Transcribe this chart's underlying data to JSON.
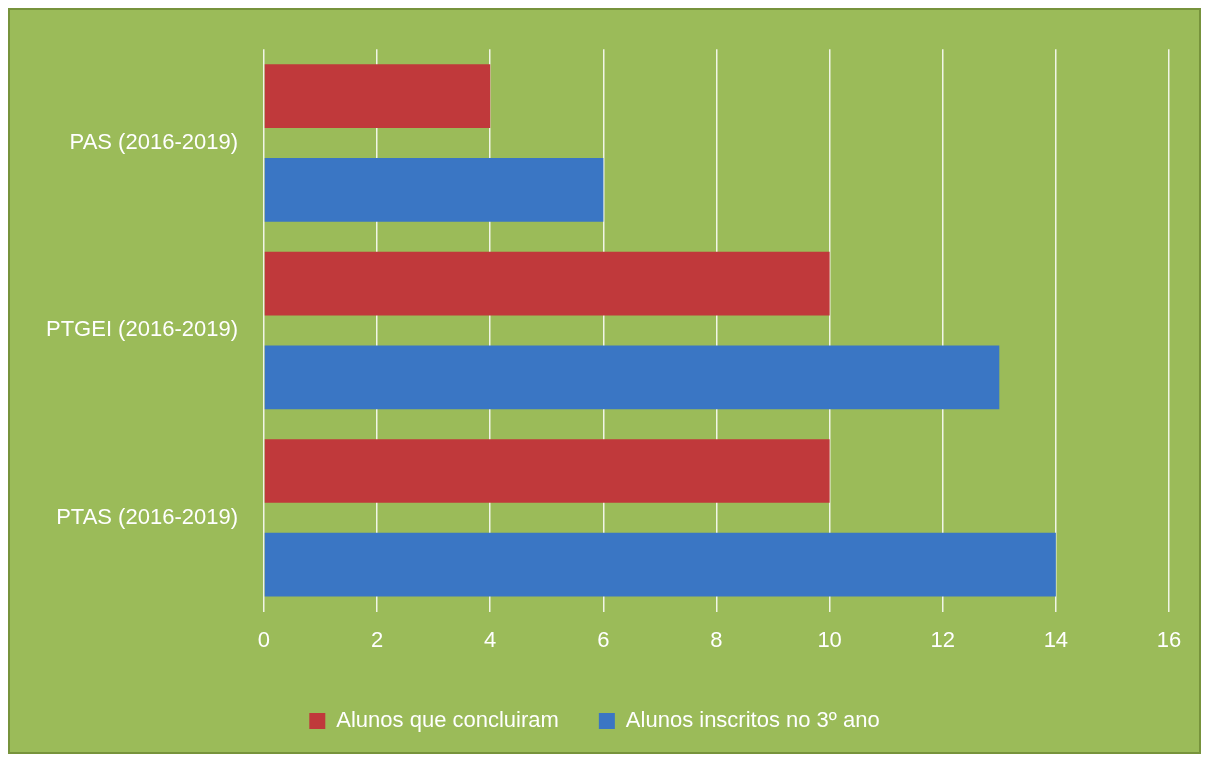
{
  "chart_data": {
    "type": "bar",
    "orientation": "horizontal",
    "categories": [
      "PAS (2016-2019)",
      "PTGEI (2016-2019)",
      "PTAS (2016-2019)"
    ],
    "series": [
      {
        "name": "Alunos que concluiram",
        "color": "#c0393b",
        "values": [
          4,
          10,
          10
        ]
      },
      {
        "name": "Alunos inscritos no 3º ano",
        "color": "#3a76c4",
        "values": [
          6,
          13,
          14
        ]
      }
    ],
    "xlim": [
      0,
      16
    ],
    "xticks": [
      0,
      2,
      4,
      6,
      8,
      10,
      12,
      14,
      16
    ],
    "grid": "x",
    "legend": "bottom"
  }
}
